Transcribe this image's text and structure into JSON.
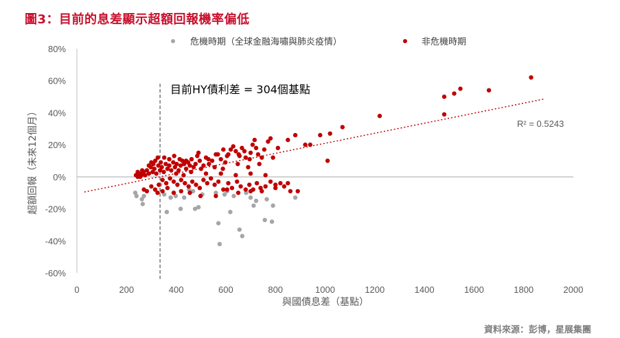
{
  "figure": {
    "title": "圖3：目前的息差顯示超額回報機率偏低",
    "source": "資料來源：彭博，星展集團"
  },
  "chart_data": {
    "type": "scatter",
    "xlabel": "與國債息差（基點）",
    "ylabel": "超額回報（未來12個月）",
    "xlim": [
      0,
      2000
    ],
    "ylim": [
      -60,
      80
    ],
    "x_ticks": [
      "0",
      "200",
      "400",
      "600",
      "800",
      "1000",
      "1200",
      "1400",
      "1600",
      "1800",
      "2000"
    ],
    "y_ticks": [
      "-60%",
      "-40%",
      "-20%",
      "0%",
      "20%",
      "40%",
      "60%",
      "80%"
    ],
    "legend_position": "top",
    "annotation": {
      "text": "目前HY債利差 = 304個基點",
      "x": 335
    },
    "trendline": {
      "x0": 30,
      "y0": -9.5,
      "x1": 1880,
      "y1": 48.5,
      "r2_label": "R² = 0.5243"
    },
    "colors": {
      "crisis": "#a6a6a6",
      "noncrisis": "#c00000",
      "zero_line": "#a6a6a6",
      "trend": "#c00000"
    },
    "series": [
      {
        "name": "危機時期（全球金融海嘯與肺炎疫情）",
        "color": "#a6a6a6",
        "points": [
          [
            235,
            -10
          ],
          [
            240,
            -12
          ],
          [
            262,
            -14
          ],
          [
            265,
            -17
          ],
          [
            270,
            -12
          ],
          [
            335,
            -5
          ],
          [
            352,
            -11
          ],
          [
            362,
            -22
          ],
          [
            378,
            -13
          ],
          [
            398,
            -12
          ],
          [
            418,
            -20
          ],
          [
            432,
            -13
          ],
          [
            452,
            -8
          ],
          [
            468,
            -9
          ],
          [
            476,
            -20
          ],
          [
            490,
            -19
          ],
          [
            505,
            -11
          ],
          [
            560,
            -10
          ],
          [
            570,
            -29
          ],
          [
            575,
            -42
          ],
          [
            595,
            -11
          ],
          [
            605,
            -9
          ],
          [
            618,
            -22
          ],
          [
            632,
            -12
          ],
          [
            655,
            -33
          ],
          [
            666,
            -37
          ],
          [
            682,
            -10
          ],
          [
            700,
            -13
          ],
          [
            712,
            -18
          ],
          [
            722,
            -15
          ],
          [
            757,
            -27
          ],
          [
            765,
            -14
          ],
          [
            786,
            -28
          ],
          [
            790,
            -18
          ],
          [
            880,
            -13
          ]
        ]
      },
      {
        "name": "非危機時期",
        "color": "#c00000",
        "points": [
          [
            1830,
            62
          ],
          [
            1660,
            54
          ],
          [
            1545,
            55
          ],
          [
            1520,
            52
          ],
          [
            1480,
            50
          ],
          [
            1480,
            39
          ],
          [
            1220,
            38
          ],
          [
            1070,
            31
          ],
          [
            1020,
            27
          ],
          [
            1010,
            10
          ],
          [
            980,
            26
          ],
          [
            940,
            20
          ],
          [
            920,
            20
          ],
          [
            880,
            26
          ],
          [
            850,
            23
          ],
          [
            810,
            18
          ],
          [
            780,
            24
          ],
          [
            770,
            22
          ],
          [
            755,
            17
          ],
          [
            745,
            12
          ],
          [
            735,
            8
          ],
          [
            722,
            18
          ],
          [
            716,
            23
          ],
          [
            708,
            20
          ],
          [
            700,
            15
          ],
          [
            690,
            6
          ],
          [
            680,
            12
          ],
          [
            665,
            18
          ],
          [
            655,
            13
          ],
          [
            648,
            8
          ],
          [
            640,
            16
          ],
          [
            630,
            19
          ],
          [
            620,
            17
          ],
          [
            605,
            13
          ],
          [
            598,
            9
          ],
          [
            588,
            5
          ],
          [
            580,
            11
          ],
          [
            568,
            14
          ],
          [
            555,
            6
          ],
          [
            545,
            10
          ],
          [
            532,
            8
          ],
          [
            520,
            12
          ],
          [
            510,
            7
          ],
          [
            500,
            5
          ],
          [
            495,
            10
          ],
          [
            485,
            13
          ],
          [
            478,
            8
          ],
          [
            470,
            6
          ],
          [
            462,
            11
          ],
          [
            455,
            7
          ],
          [
            448,
            9
          ],
          [
            440,
            5
          ],
          [
            432,
            8
          ],
          [
            425,
            10
          ],
          [
            418,
            7
          ],
          [
            410,
            4
          ],
          [
            402,
            8
          ],
          [
            395,
            6
          ],
          [
            388,
            9
          ],
          [
            380,
            4
          ],
          [
            372,
            7
          ],
          [
            365,
            5
          ],
          [
            358,
            8
          ],
          [
            350,
            3
          ],
          [
            342,
            6
          ],
          [
            335,
            4
          ],
          [
            328,
            7
          ],
          [
            320,
            2
          ],
          [
            312,
            5
          ],
          [
            305,
            3
          ],
          [
            298,
            6
          ],
          [
            290,
            2
          ],
          [
            282,
            4
          ],
          [
            275,
            1
          ],
          [
            268,
            3
          ],
          [
            260,
            1
          ],
          [
            252,
            2
          ],
          [
            245,
            0
          ],
          [
            238,
            1
          ],
          [
            400,
            2
          ],
          [
            430,
            1
          ],
          [
            460,
            3
          ],
          [
            520,
            2
          ],
          [
            580,
            2
          ],
          [
            640,
            1
          ],
          [
            700,
            2
          ],
          [
            760,
            1
          ],
          [
            330,
            -5
          ],
          [
            345,
            -2
          ],
          [
            360,
            -4
          ],
          [
            375,
            -1
          ],
          [
            390,
            -3
          ],
          [
            405,
            -5
          ],
          [
            420,
            -2
          ],
          [
            435,
            -4
          ],
          [
            450,
            -6
          ],
          [
            465,
            -3
          ],
          [
            480,
            -5
          ],
          [
            495,
            -7
          ],
          [
            510,
            -2
          ],
          [
            525,
            -4
          ],
          [
            540,
            -1
          ],
          [
            555,
            -5
          ],
          [
            570,
            -3
          ],
          [
            590,
            -8
          ],
          [
            610,
            -4
          ],
          [
            625,
            -7
          ],
          [
            645,
            -3
          ],
          [
            660,
            -6
          ],
          [
            680,
            -8
          ],
          [
            695,
            -5
          ],
          [
            710,
            -8
          ],
          [
            725,
            -4
          ],
          [
            740,
            -7
          ],
          [
            760,
            -6
          ],
          [
            780,
            -3
          ],
          [
            800,
            -7
          ],
          [
            820,
            -4
          ],
          [
            835,
            -6
          ],
          [
            860,
            -9
          ],
          [
            890,
            -9
          ],
          [
            270,
            -8
          ],
          [
            282,
            -9
          ],
          [
            300,
            -6
          ],
          [
            315,
            -8
          ],
          [
            325,
            -10
          ],
          [
            345,
            -9
          ],
          [
            365,
            -7
          ],
          [
            390,
            -10
          ],
          [
            420,
            -9
          ],
          [
            455,
            -10
          ],
          [
            498,
            -12
          ],
          [
            560,
            -12
          ],
          [
            605,
            -8
          ],
          [
            650,
            -10
          ],
          [
            700,
            -9
          ],
          [
            745,
            -9
          ],
          [
            800,
            -5
          ],
          [
            850,
            -4
          ],
          [
            316,
            10
          ],
          [
            326,
            12
          ],
          [
            338,
            9
          ],
          [
            352,
            12
          ],
          [
            372,
            11
          ],
          [
            392,
            13
          ],
          [
            414,
            11
          ],
          [
            440,
            10
          ],
          [
            490,
            15
          ],
          [
            530,
            11
          ],
          [
            560,
            14
          ],
          [
            590,
            17
          ],
          [
            610,
            14
          ],
          [
            652,
            14
          ],
          [
            675,
            16
          ],
          [
            696,
            11
          ],
          [
            730,
            14
          ],
          [
            790,
            12
          ],
          [
            245,
            3
          ],
          [
            255,
            0
          ],
          [
            263,
            4
          ],
          [
            290,
            7
          ],
          [
            300,
            9
          ],
          [
            308,
            8
          ]
        ]
      }
    ]
  }
}
